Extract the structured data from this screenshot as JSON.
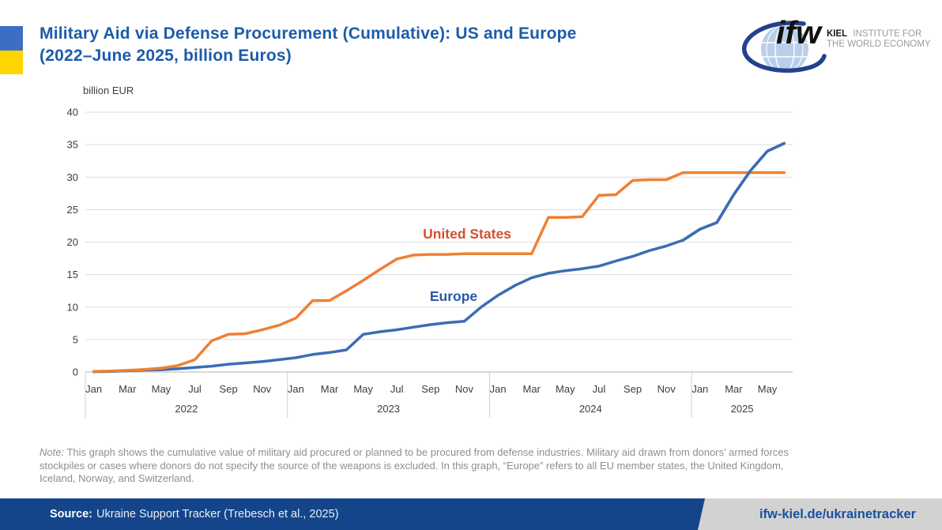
{
  "header": {
    "title_line1": "Military Aid via Defense Procurement (Cumulative): US and Europe",
    "title_line2": "(2022–June 2025, billion Euros)",
    "title_color": "#1d5ca8",
    "flag_blue": "#3d6ec5",
    "flag_yellow": "#ffd500"
  },
  "logo": {
    "wordmark": "ifw",
    "name_bold": "KIEL",
    "name_rest": "INSTITUTE FOR",
    "name_line2": "THE WORLD ECONOMY",
    "globe_color": "#b9cfe9",
    "swoosh_color": "#24418e"
  },
  "chart_data": {
    "type": "line",
    "title": "Military Aid via Defense Procurement (Cumulative): US and Europe (2022–June 2025, billion Euros)",
    "ylabel": "billion EUR",
    "ylim": [
      0,
      40
    ],
    "ytick_step": 5,
    "yticks": [
      0,
      5,
      10,
      15,
      20,
      25,
      30,
      35,
      40
    ],
    "grid": "horizontal",
    "legend_position": "inline-labels",
    "x": [
      "Jan 2022",
      "Feb 2022",
      "Mar 2022",
      "Apr 2022",
      "May 2022",
      "Jun 2022",
      "Jul 2022",
      "Aug 2022",
      "Sep 2022",
      "Oct 2022",
      "Nov 2022",
      "Dec 2022",
      "Jan 2023",
      "Feb 2023",
      "Mar 2023",
      "Apr 2023",
      "May 2023",
      "Jun 2023",
      "Jul 2023",
      "Aug 2023",
      "Sep 2023",
      "Oct 2023",
      "Nov 2023",
      "Dec 2023",
      "Jan 2024",
      "Feb 2024",
      "Mar 2024",
      "Apr 2024",
      "May 2024",
      "Jun 2024",
      "Jul 2024",
      "Aug 2024",
      "Sep 2024",
      "Oct 2024",
      "Nov 2024",
      "Dec 2024",
      "Jan 2025",
      "Feb 2025",
      "Mar 2025",
      "Apr 2025",
      "May 2025",
      "Jun 2025"
    ],
    "years": [
      {
        "label": "2022",
        "start_index": 0,
        "months": [
          "Jan",
          "Mar",
          "May",
          "Jul",
          "Sep",
          "Nov"
        ]
      },
      {
        "label": "2023",
        "start_index": 12,
        "months": [
          "Jan",
          "Mar",
          "May",
          "Jul",
          "Sep",
          "Nov"
        ]
      },
      {
        "label": "2024",
        "start_index": 24,
        "months": [
          "Jan",
          "Mar",
          "May",
          "Jul",
          "Sep",
          "Nov"
        ]
      },
      {
        "label": "2025",
        "start_index": 36,
        "months": [
          "Jan",
          "Mar",
          "May"
        ]
      }
    ],
    "series": [
      {
        "name": "United States",
        "color": "#ef8032",
        "label_color": "#d5502d",
        "values": [
          0.1,
          0.15,
          0.25,
          0.4,
          0.6,
          1.0,
          1.9,
          4.8,
          5.8,
          5.9,
          6.5,
          7.2,
          8.3,
          11.0,
          11.0,
          12.5,
          14.1,
          15.8,
          17.4,
          18.0,
          18.1,
          18.1,
          18.2,
          18.2,
          18.2,
          18.2,
          18.2,
          23.8,
          23.8,
          23.9,
          27.2,
          27.3,
          29.5,
          29.6,
          29.6,
          30.7,
          30.7,
          30.7,
          30.7,
          30.7,
          30.7,
          30.7
        ]
      },
      {
        "name": "Europe",
        "color": "#3c6cb4",
        "label_color": "#2a58a5",
        "values": [
          0.05,
          0.1,
          0.2,
          0.3,
          0.35,
          0.5,
          0.7,
          0.9,
          1.2,
          1.4,
          1.6,
          1.9,
          2.2,
          2.7,
          3.0,
          3.4,
          5.8,
          6.2,
          6.5,
          6.9,
          7.3,
          7.6,
          7.8,
          10.0,
          11.8,
          13.3,
          14.5,
          15.2,
          15.6,
          15.9,
          16.3,
          17.1,
          17.8,
          18.7,
          19.4,
          20.3,
          22.0,
          23.0,
          27.3,
          31.0,
          34.0,
          35.2
        ]
      }
    ]
  },
  "note": {
    "prefix": "Note:",
    "text": " This graph shows the cumulative value of military aid procured or planned to be procured from defense industries. Military aid drawn from donors’ armed forces stockpiles or cases where donors do not specify the source of the weapons is excluded. In this graph, “Europe” refers to all EU member states, the United Kingdom, Iceland, Norway, and Switzerland."
  },
  "footer": {
    "source_label": "Source:",
    "source_text": "Ukraine Support Tracker (Trebesch et al., 2025)",
    "link": "ifw-kiel.de/ukrainetracker",
    "bar_color": "#14458a",
    "link_color": "#19509e"
  }
}
